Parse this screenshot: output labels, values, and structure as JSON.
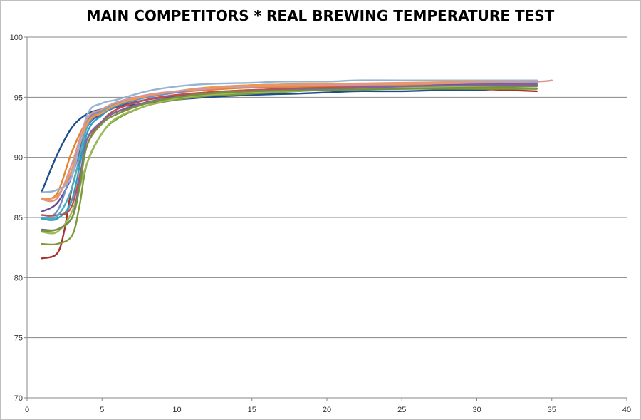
{
  "chart_data": {
    "type": "line",
    "title": "MAIN COMPETITORS * REAL BREWING TEMPERATURE TEST",
    "xlabel": "",
    "ylabel": "",
    "xlim": [
      0,
      40
    ],
    "ylim": [
      70,
      100
    ],
    "x_ticks": [
      0,
      5,
      10,
      15,
      20,
      25,
      30,
      35,
      40
    ],
    "y_ticks": [
      70,
      75,
      80,
      85,
      90,
      95,
      100
    ],
    "grid": "horizontal",
    "legend": "none",
    "series": [
      {
        "color": "#1f4e8c",
        "points": [
          [
            1,
            87.2
          ],
          [
            2,
            90.2
          ],
          [
            3,
            92.5
          ],
          [
            4,
            93.6
          ],
          [
            5,
            94.0
          ],
          [
            6,
            94.2
          ],
          [
            8,
            94.5
          ],
          [
            10,
            94.8
          ],
          [
            12,
            95.0
          ],
          [
            15,
            95.2
          ],
          [
            18,
            95.3
          ],
          [
            20,
            95.4
          ],
          [
            22,
            95.5
          ],
          [
            25,
            95.5
          ],
          [
            28,
            95.6
          ],
          [
            30,
            95.6
          ],
          [
            32,
            95.7
          ],
          [
            34,
            95.7
          ]
        ]
      },
      {
        "color": "#a8322e",
        "points": [
          [
            1,
            81.6
          ],
          [
            2,
            82.0
          ],
          [
            2.5,
            84.0
          ],
          [
            3,
            87.5
          ],
          [
            4,
            91.5
          ],
          [
            5,
            93.0
          ],
          [
            6,
            93.8
          ],
          [
            8,
            94.5
          ],
          [
            10,
            94.9
          ],
          [
            12,
            95.2
          ],
          [
            15,
            95.4
          ],
          [
            18,
            95.6
          ],
          [
            20,
            95.7
          ],
          [
            22,
            95.7
          ],
          [
            25,
            95.8
          ],
          [
            28,
            95.8
          ],
          [
            30,
            95.7
          ],
          [
            32,
            95.6
          ],
          [
            34,
            95.5
          ]
        ]
      },
      {
        "color": "#7f9a3a",
        "points": [
          [
            1,
            82.8
          ],
          [
            2,
            82.8
          ],
          [
            3,
            83.5
          ],
          [
            3.5,
            86.0
          ],
          [
            4,
            89.5
          ],
          [
            5,
            92.0
          ],
          [
            6,
            93.2
          ],
          [
            8,
            94.3
          ],
          [
            10,
            94.8
          ],
          [
            12,
            95.1
          ],
          [
            15,
            95.3
          ],
          [
            18,
            95.5
          ],
          [
            20,
            95.6
          ],
          [
            25,
            95.7
          ],
          [
            30,
            95.7
          ],
          [
            34,
            95.7
          ]
        ]
      },
      {
        "color": "#6b4a8f",
        "points": [
          [
            1,
            85.5
          ],
          [
            2,
            86.2
          ],
          [
            3,
            88.5
          ],
          [
            4,
            92.5
          ],
          [
            5,
            93.6
          ],
          [
            6,
            94.2
          ],
          [
            8,
            94.8
          ],
          [
            10,
            95.1
          ],
          [
            12,
            95.4
          ],
          [
            15,
            95.6
          ],
          [
            20,
            95.8
          ],
          [
            25,
            96.0
          ],
          [
            30,
            96.1
          ],
          [
            34,
            96.1
          ]
        ]
      },
      {
        "color": "#2d9fc4",
        "points": [
          [
            1,
            84.9
          ],
          [
            2,
            84.9
          ],
          [
            3,
            86.5
          ],
          [
            4,
            92.0
          ],
          [
            5,
            93.5
          ],
          [
            6,
            94.3
          ],
          [
            8,
            95.0
          ],
          [
            10,
            95.4
          ],
          [
            12,
            95.7
          ],
          [
            15,
            96.0
          ],
          [
            20,
            96.1
          ],
          [
            25,
            96.1
          ],
          [
            30,
            96.2
          ],
          [
            34,
            96.2
          ]
        ]
      },
      {
        "color": "#e3832d",
        "points": [
          [
            1,
            86.5
          ],
          [
            2,
            87.0
          ],
          [
            3,
            90.5
          ],
          [
            4,
            93.0
          ],
          [
            5,
            93.8
          ],
          [
            6,
            94.5
          ],
          [
            8,
            95.1
          ],
          [
            10,
            95.4
          ],
          [
            12,
            95.6
          ],
          [
            15,
            95.8
          ],
          [
            20,
            95.9
          ],
          [
            25,
            96.0
          ],
          [
            30,
            96.3
          ],
          [
            34,
            96.4
          ]
        ]
      },
      {
        "color": "#6d8fc9",
        "points": [
          [
            1,
            85.2
          ],
          [
            2,
            85.5
          ],
          [
            3,
            89.0
          ],
          [
            4,
            93.0
          ],
          [
            5,
            93.9
          ],
          [
            6,
            94.5
          ],
          [
            8,
            95.0
          ],
          [
            10,
            95.4
          ],
          [
            12,
            95.7
          ],
          [
            15,
            95.9
          ],
          [
            20,
            96.0
          ],
          [
            25,
            96.1
          ],
          [
            30,
            96.2
          ],
          [
            34,
            96.2
          ]
        ]
      },
      {
        "color": "#c0504d",
        "points": [
          [
            1,
            85.2
          ],
          [
            2,
            85.2
          ],
          [
            3,
            86.0
          ],
          [
            4,
            91.0
          ],
          [
            5,
            93.0
          ],
          [
            6,
            94.0
          ],
          [
            8,
            94.8
          ],
          [
            10,
            95.2
          ],
          [
            12,
            95.4
          ],
          [
            15,
            95.6
          ],
          [
            20,
            95.8
          ],
          [
            25,
            95.9
          ],
          [
            30,
            96.0
          ],
          [
            34,
            96.0
          ]
        ]
      },
      {
        "color": "#9bbb59",
        "points": [
          [
            1,
            83.8
          ],
          [
            2,
            83.8
          ],
          [
            3,
            85.5
          ],
          [
            4,
            89.5
          ],
          [
            5,
            92.0
          ],
          [
            6,
            93.3
          ],
          [
            8,
            94.3
          ],
          [
            10,
            94.9
          ],
          [
            12,
            95.2
          ],
          [
            15,
            95.4
          ],
          [
            20,
            95.6
          ],
          [
            25,
            95.8
          ],
          [
            30,
            95.9
          ],
          [
            34,
            95.9
          ]
        ]
      },
      {
        "color": "#8064a2",
        "points": [
          [
            1,
            84.0
          ],
          [
            2,
            84.0
          ],
          [
            3,
            85.0
          ],
          [
            3.5,
            88.0
          ],
          [
            4,
            91.5
          ],
          [
            5,
            93.0
          ],
          [
            6,
            93.8
          ],
          [
            8,
            94.6
          ],
          [
            10,
            95.0
          ],
          [
            12,
            95.3
          ],
          [
            15,
            95.5
          ],
          [
            20,
            95.7
          ],
          [
            25,
            95.9
          ],
          [
            30,
            96.0
          ],
          [
            34,
            96.0
          ]
        ]
      },
      {
        "color": "#4bacc6",
        "points": [
          [
            1,
            85.0
          ],
          [
            2,
            85.1
          ],
          [
            3,
            87.5
          ],
          [
            4,
            92.5
          ],
          [
            5,
            93.8
          ],
          [
            6,
            94.5
          ],
          [
            8,
            95.1
          ],
          [
            10,
            95.5
          ],
          [
            12,
            95.8
          ],
          [
            15,
            96.0
          ],
          [
            20,
            96.1
          ],
          [
            25,
            96.1
          ],
          [
            30,
            96.2
          ],
          [
            34,
            96.2
          ]
        ]
      },
      {
        "color": "#f79646",
        "points": [
          [
            1,
            86.6
          ],
          [
            2,
            86.8
          ],
          [
            3,
            89.0
          ],
          [
            4,
            92.8
          ],
          [
            5,
            93.7
          ],
          [
            6,
            94.4
          ],
          [
            8,
            95.1
          ],
          [
            10,
            95.5
          ],
          [
            12,
            95.8
          ],
          [
            15,
            96.0
          ],
          [
            20,
            96.1
          ],
          [
            25,
            96.2
          ],
          [
            30,
            96.3
          ],
          [
            34,
            96.4
          ]
        ]
      },
      {
        "color": "#95b3d7",
        "points": [
          [
            1,
            87.1
          ],
          [
            2,
            87.3
          ],
          [
            3,
            88.5
          ],
          [
            4,
            93.5
          ],
          [
            5,
            94.5
          ],
          [
            6,
            94.8
          ],
          [
            8,
            95.5
          ],
          [
            10,
            95.9
          ],
          [
            12,
            96.1
          ],
          [
            15,
            96.2
          ],
          [
            17,
            96.3
          ],
          [
            20,
            96.3
          ],
          [
            22,
            96.4
          ],
          [
            25,
            96.4
          ],
          [
            30,
            96.4
          ],
          [
            34,
            96.4
          ]
        ]
      },
      {
        "color": "#d99694",
        "points": [
          [
            1,
            86.5
          ],
          [
            2,
            86.6
          ],
          [
            3,
            89.5
          ],
          [
            4,
            93.2
          ],
          [
            5,
            94.0
          ],
          [
            6,
            94.6
          ],
          [
            8,
            95.2
          ],
          [
            10,
            95.5
          ],
          [
            12,
            95.7
          ],
          [
            15,
            95.9
          ],
          [
            20,
            96.0
          ],
          [
            25,
            96.1
          ],
          [
            30,
            96.2
          ],
          [
            34,
            96.3
          ],
          [
            35,
            96.4
          ]
        ]
      },
      {
        "color": "#76923c",
        "points": [
          [
            1,
            83.9
          ],
          [
            2,
            84.0
          ],
          [
            3,
            85.0
          ],
          [
            3.5,
            87.5
          ],
          [
            4,
            91.0
          ],
          [
            5,
            92.8
          ],
          [
            6,
            93.6
          ],
          [
            8,
            94.5
          ],
          [
            10,
            95.0
          ],
          [
            12,
            95.3
          ],
          [
            15,
            95.5
          ],
          [
            20,
            95.6
          ],
          [
            25,
            95.7
          ],
          [
            30,
            95.8
          ],
          [
            34,
            95.9
          ]
        ]
      }
    ]
  }
}
